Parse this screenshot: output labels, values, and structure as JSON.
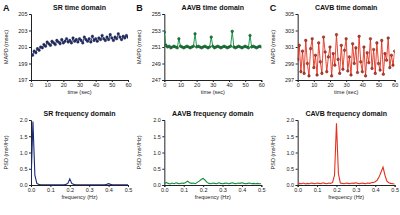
{
  "chart_data": [
    {
      "type": "line",
      "title": "SR time domain",
      "annotations": [
        "A"
      ],
      "xlabel": "time (sec)",
      "ylabel": "MAPD (msec)",
      "color": "#1c2b78",
      "marker": "circle",
      "xlim": [
        0,
        60
      ],
      "xticks": [
        0,
        10,
        20,
        30,
        40,
        50,
        60
      ],
      "ylim": [
        197,
        205
      ],
      "yticks": [
        197,
        199,
        201,
        203,
        205
      ],
      "x": [
        0,
        1,
        2,
        3,
        4,
        5,
        6,
        7,
        8,
        9,
        10,
        11,
        12,
        13,
        14,
        15,
        16,
        17,
        18,
        19,
        20,
        21,
        22,
        23,
        24,
        25,
        26,
        27,
        28,
        29,
        30,
        31,
        32,
        33,
        34,
        35,
        36,
        37,
        38,
        39,
        40,
        41,
        42,
        43,
        44,
        45,
        46,
        47,
        48,
        49,
        50,
        51,
        52,
        53,
        54,
        55,
        56,
        57,
        58,
        59,
        60
      ],
      "values": [
        200.2,
        200.0,
        200.5,
        200.3,
        200.8,
        200.6,
        201.0,
        200.9,
        201.3,
        201.1,
        201.6,
        201.4,
        201.2,
        201.7,
        201.5,
        201.3,
        201.8,
        201.6,
        201.4,
        201.9,
        201.5,
        201.7,
        202.0,
        201.6,
        201.8,
        201.5,
        202.1,
        201.7,
        201.9,
        201.6,
        202.0,
        201.8,
        201.5,
        202.2,
        201.9,
        201.7,
        202.0,
        201.6,
        202.3,
        201.8,
        202.0,
        201.7,
        202.1,
        201.9,
        202.4,
        202.0,
        201.8,
        202.2,
        201.9,
        202.5,
        202.1,
        201.8,
        202.2,
        202.0,
        202.6,
        202.2,
        201.9,
        202.3,
        202.1,
        202.4,
        202.2
      ]
    },
    {
      "type": "line",
      "title": "AAVB time domain",
      "annotations": [
        "B"
      ],
      "xlabel": "time (sec)",
      "ylabel": "MAPD (msec)",
      "color": "#0b8f3a",
      "marker": "circle",
      "xlim": [
        0,
        60
      ],
      "xticks": [
        0,
        10,
        20,
        30,
        40,
        50,
        60
      ],
      "ylim": [
        247,
        255
      ],
      "yticks": [
        247,
        249,
        251,
        253,
        255
      ],
      "x": [
        0,
        1,
        2,
        3,
        4,
        5,
        6,
        7,
        8,
        9,
        10,
        11,
        12,
        13,
        14,
        15,
        16,
        17,
        18,
        19,
        20,
        21,
        22,
        23,
        24,
        25,
        26,
        27,
        28,
        29,
        30,
        31,
        32,
        33,
        34,
        35,
        36,
        37,
        38,
        39,
        40,
        41,
        42,
        43,
        44,
        45,
        46,
        47,
        48,
        49,
        50,
        51,
        52,
        53,
        54,
        55,
        56,
        57,
        58,
        59,
        60
      ],
      "values": [
        252.8,
        251.2,
        251.0,
        251.1,
        250.9,
        251.0,
        251.1,
        251.0,
        250.9,
        252.0,
        251.1,
        251.0,
        250.9,
        251.0,
        251.1,
        251.0,
        250.9,
        251.0,
        251.1,
        252.6,
        251.0,
        251.1,
        251.0,
        250.9,
        251.0,
        251.1,
        251.0,
        250.9,
        251.0,
        252.2,
        251.1,
        250.9,
        251.0,
        251.1,
        251.0,
        250.9,
        251.0,
        251.1,
        251.0,
        250.9,
        251.0,
        251.1,
        252.9,
        251.0,
        250.9,
        251.0,
        251.1,
        251.0,
        250.9,
        251.0,
        251.1,
        251.0,
        250.9,
        252.4,
        251.0,
        251.1,
        251.0,
        250.9,
        251.0,
        251.1,
        251.0
      ]
    },
    {
      "type": "line",
      "title": "CAVB time domain",
      "annotations": [
        "C"
      ],
      "xlabel": "time (sec)",
      "ylabel": "MAPD (msec)",
      "color": "#e2321f",
      "marker": "circle",
      "xlim": [
        0,
        60
      ],
      "xticks": [
        0,
        10,
        20,
        30,
        40,
        50,
        60
      ],
      "ylim": [
        297,
        305
      ],
      "yticks": [
        297,
        299,
        301,
        303,
        305
      ],
      "x": [
        0,
        1,
        2,
        3,
        4,
        5,
        6,
        7,
        8,
        9,
        10,
        11,
        12,
        13,
        14,
        15,
        16,
        17,
        18,
        19,
        20,
        21,
        22,
        23,
        24,
        25,
        26,
        27,
        28,
        29,
        30,
        31,
        32,
        33,
        34,
        35,
        36,
        37,
        38,
        39,
        40,
        41,
        42,
        43,
        44,
        45,
        46,
        47,
        48,
        49,
        50,
        51,
        52,
        53,
        54,
        55,
        56,
        57,
        58,
        59,
        60
      ],
      "values": [
        299.5,
        301.2,
        298.0,
        300.5,
        297.8,
        301.8,
        299.0,
        297.5,
        300.8,
        302.0,
        298.5,
        300.0,
        297.6,
        301.5,
        299.2,
        297.8,
        302.2,
        300.4,
        298.0,
        299.8,
        301.0,
        297.5,
        300.2,
        298.8,
        302.5,
        299.5,
        297.8,
        301.2,
        298.3,
        300.6,
        302.0,
        298.1,
        299.8,
        297.6,
        301.4,
        299.0,
        300.9,
        297.9,
        302.3,
        299.2,
        298.0,
        301.0,
        297.5,
        300.3,
        299.1,
        302.0,
        298.4,
        300.7,
        297.8,
        301.5,
        299.0,
        298.2,
        301.8,
        297.7,
        300.2,
        299.4,
        302.1,
        298.5,
        300.0,
        298.8,
        300.5
      ]
    },
    {
      "type": "line",
      "title": "SR frequency domain",
      "xlabel": "frequency (Hz)",
      "ylabel": "PSD (ms²/Hz)",
      "color": "#1c2b78",
      "xlim": [
        0,
        0.5
      ],
      "xticks": [
        {
          "value": 0,
          "label": "0.0"
        },
        0.1,
        0.2,
        0.3,
        0.4,
        0.5
      ],
      "ylim": [
        0,
        2
      ],
      "yticks": [
        {
          "value": 0,
          "label": "0.0"
        },
        0.5,
        {
          "value": 1,
          "label": "1.0"
        },
        1.5,
        {
          "value": 2,
          "label": "2.0"
        }
      ],
      "x": [
        0,
        0.01,
        0.02,
        0.03,
        0.04,
        0.05,
        0.06,
        0.07,
        0.08,
        0.09,
        0.1,
        0.11,
        0.12,
        0.13,
        0.14,
        0.15,
        0.16,
        0.17,
        0.18,
        0.19,
        0.2,
        0.21,
        0.22,
        0.23,
        0.24,
        0.25,
        0.26,
        0.27,
        0.28,
        0.29,
        0.3,
        0.31,
        0.32,
        0.33,
        0.34,
        0.35,
        0.36,
        0.37,
        0.38,
        0.39,
        0.4,
        0.41,
        0.42,
        0.43,
        0.44,
        0.45,
        0.46,
        0.47,
        0.48,
        0.49,
        0.5
      ],
      "values": [
        0.05,
        1.95,
        0.3,
        0.05,
        0.02,
        0.01,
        0.01,
        0.01,
        0.01,
        0.01,
        0.01,
        0.01,
        0.01,
        0.01,
        0.01,
        0.01,
        0.01,
        0.01,
        0.02,
        0.05,
        0.19,
        0.05,
        0.02,
        0.01,
        0.01,
        0.01,
        0.01,
        0.01,
        0.01,
        0.01,
        0.01,
        0.01,
        0.01,
        0.01,
        0.01,
        0.01,
        0.01,
        0.01,
        0.01,
        0.02,
        0.04,
        0.02,
        0.01,
        0.01,
        0.01,
        0.01,
        0.01,
        0.01,
        0.01,
        0.01,
        0.01
      ]
    },
    {
      "type": "line",
      "title": "AAVB frequency domain",
      "xlabel": "frequency (Hz)",
      "ylabel": "PSD (ms²/Hz)",
      "color": "#0b8f3a",
      "xlim": [
        0,
        0.5
      ],
      "xticks": [
        {
          "value": 0,
          "label": "0.0"
        },
        0.1,
        0.2,
        0.3,
        0.4,
        0.5
      ],
      "ylim": [
        0,
        2
      ],
      "yticks": [
        {
          "value": 0,
          "label": "0.0"
        },
        0.5,
        {
          "value": 1,
          "label": "1.0"
        },
        1.5,
        {
          "value": 2,
          "label": "2.0"
        }
      ],
      "x": [
        0,
        0.01,
        0.02,
        0.03,
        0.04,
        0.05,
        0.06,
        0.07,
        0.08,
        0.09,
        0.1,
        0.11,
        0.12,
        0.13,
        0.14,
        0.15,
        0.16,
        0.17,
        0.18,
        0.19,
        0.2,
        0.21,
        0.22,
        0.23,
        0.24,
        0.25,
        0.26,
        0.27,
        0.28,
        0.29,
        0.3,
        0.31,
        0.32,
        0.33,
        0.34,
        0.35,
        0.36,
        0.37,
        0.38,
        0.39,
        0.4,
        0.41,
        0.42,
        0.43,
        0.44,
        0.45,
        0.46,
        0.47,
        0.48,
        0.49,
        0.5
      ],
      "values": [
        0.04,
        0.08,
        0.05,
        0.03,
        0.06,
        0.04,
        0.07,
        0.05,
        0.04,
        0.06,
        0.05,
        0.08,
        0.12,
        0.07,
        0.05,
        0.06,
        0.04,
        0.08,
        0.12,
        0.17,
        0.2,
        0.15,
        0.08,
        0.05,
        0.04,
        0.06,
        0.05,
        0.04,
        0.07,
        0.05,
        0.04,
        0.05,
        0.06,
        0.04,
        0.05,
        0.07,
        0.05,
        0.04,
        0.06,
        0.05,
        0.07,
        0.05,
        0.04,
        0.05,
        0.06,
        0.04,
        0.05,
        0.04,
        0.05,
        0.04,
        0.04
      ]
    },
    {
      "type": "line",
      "title": "CAVB frequency domain",
      "xlabel": "frequency (Hz)",
      "ylabel": "PSD (ms²/Hz)",
      "color": "#e2321f",
      "xlim": [
        0,
        0.5
      ],
      "xticks": [
        {
          "value": 0,
          "label": "0.0"
        },
        0.1,
        0.2,
        0.3,
        0.4,
        0.5
      ],
      "ylim": [
        0,
        2
      ],
      "yticks": [
        {
          "value": 0,
          "label": "0.0"
        },
        0.5,
        {
          "value": 1,
          "label": "1.0"
        },
        1.5,
        {
          "value": 2,
          "label": "2.0"
        }
      ],
      "x": [
        0,
        0.01,
        0.02,
        0.03,
        0.04,
        0.05,
        0.06,
        0.07,
        0.08,
        0.09,
        0.1,
        0.11,
        0.12,
        0.13,
        0.14,
        0.15,
        0.16,
        0.17,
        0.18,
        0.19,
        0.2,
        0.21,
        0.22,
        0.23,
        0.24,
        0.25,
        0.26,
        0.27,
        0.28,
        0.29,
        0.3,
        0.31,
        0.32,
        0.33,
        0.34,
        0.35,
        0.36,
        0.37,
        0.38,
        0.39,
        0.4,
        0.41,
        0.42,
        0.43,
        0.44,
        0.45,
        0.46,
        0.47,
        0.48,
        0.49,
        0.5
      ],
      "values": [
        0.03,
        0.05,
        0.04,
        0.06,
        0.03,
        0.05,
        0.04,
        0.06,
        0.05,
        0.04,
        0.06,
        0.05,
        0.04,
        0.07,
        0.05,
        0.04,
        0.06,
        0.05,
        0.08,
        0.3,
        1.9,
        0.35,
        0.06,
        0.05,
        0.04,
        0.06,
        0.05,
        0.04,
        0.06,
        0.05,
        0.07,
        0.05,
        0.04,
        0.06,
        0.05,
        0.04,
        0.06,
        0.05,
        0.07,
        0.08,
        0.1,
        0.15,
        0.25,
        0.4,
        0.55,
        0.3,
        0.12,
        0.07,
        0.05,
        0.04,
        0.03
      ]
    }
  ]
}
